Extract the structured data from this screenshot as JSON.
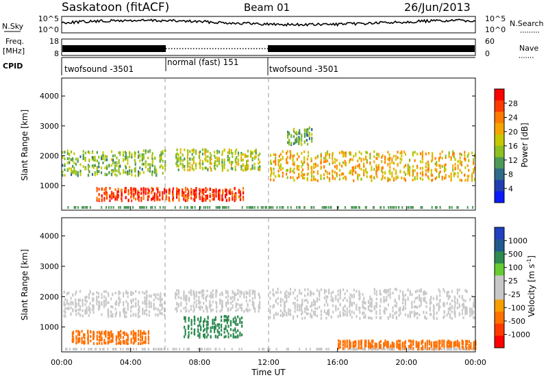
{
  "header": {
    "title": "Saskatoon (fitACF)",
    "beam": "Beam 01",
    "date": "26/Jun/2013"
  },
  "nsky_panel": {
    "left_label": "N.Sky",
    "right_label": "N.Search",
    "left_ticks": [
      "10^5",
      "10^0"
    ],
    "right_ticks": [
      "10^5",
      "10^0"
    ]
  },
  "freq_panel": {
    "left_label_1": "Freq.",
    "left_label_2": "[MHz]",
    "right_label": "Nave",
    "left_ticks": [
      "18",
      "8"
    ],
    "right_ticks": [
      "60",
      "0"
    ]
  },
  "cpid_panel": {
    "label": "CPID",
    "segments": [
      {
        "name": "twofsound -3501",
        "start_hour": 0,
        "end_hour": 6
      },
      {
        "name": "normal (fast) 151",
        "start_hour": 6,
        "end_hour": 12
      },
      {
        "name": "twofsound -3501",
        "start_hour": 12,
        "end_hour": 24
      }
    ]
  },
  "power_colorbar": {
    "label": "Power [dB]",
    "ticks": [
      "28",
      "24",
      "20",
      "16",
      "12",
      "8",
      "4"
    ],
    "colors": [
      "#ff0000",
      "#ff3a00",
      "#ff7a00",
      "#f5a400",
      "#c8c800",
      "#8dc020",
      "#4d9a57",
      "#306a8a",
      "#1f3fb0",
      "#0a1aff"
    ]
  },
  "velocity_colorbar": {
    "label": "Velocity [m s",
    "label_superscript": "-1",
    "label_close": "]",
    "ticks": [
      "1000",
      "500",
      "100",
      "25",
      "-25",
      "-100",
      "-500",
      "-1000"
    ],
    "colors": [
      "#2040c0",
      "#205a8f",
      "#2d8a50",
      "#66cc33",
      "#c8c8c8",
      "#c8c8c8",
      "#f5a000",
      "#ff7000",
      "#ff3a00",
      "#ff0000"
    ]
  },
  "x_axis": {
    "title": "Time UT",
    "ticks": [
      "00:00",
      "04:00",
      "08:00",
      "12:00",
      "16:00",
      "20:00",
      "00:00"
    ]
  },
  "chart_data": [
    {
      "type": "heatmap",
      "name_on_chart": "Power [dB]",
      "ylabel": "Slant Range [km]",
      "xlabel": "Time UT",
      "xlim_hours": [
        0,
        24
      ],
      "ylim_km": [
        180,
        4600
      ],
      "y_ticks": [
        1000,
        2000,
        3000,
        4000
      ],
      "clim_db": [
        0,
        32
      ],
      "echo_regions": [
        {
          "t_start": 0.0,
          "t_end": 6.0,
          "range_center_km": 1800,
          "range_width_km": 600,
          "power_db": 14
        },
        {
          "t_start": 2.0,
          "t_end": 10.5,
          "range_center_km": 750,
          "range_width_km": 300,
          "power_db": 28
        },
        {
          "t_start": 6.5,
          "t_end": 11.5,
          "range_center_km": 1900,
          "range_width_km": 500,
          "power_db": 16
        },
        {
          "t_start": 12.0,
          "t_end": 24.0,
          "range_center_km": 1700,
          "range_width_km": 700,
          "power_db": 20
        },
        {
          "t_start": 13.0,
          "t_end": 14.5,
          "range_center_km": 2700,
          "range_width_km": 400,
          "power_db": 12
        }
      ]
    },
    {
      "type": "heatmap",
      "name_on_chart": "Velocity [m s-1]",
      "ylabel": "Slant Range [km]",
      "xlabel": "Time UT",
      "xlim_hours": [
        0,
        24
      ],
      "ylim_km": [
        180,
        4600
      ],
      "y_ticks": [
        1000,
        2000,
        3000,
        4000
      ],
      "clim_ms": [
        -1000,
        1000
      ],
      "echo_regions": [
        {
          "t_start": 0.0,
          "t_end": 6.0,
          "range_center_km": 1800,
          "range_width_km": 600,
          "velocity_ms": 0
        },
        {
          "t_start": 0.5,
          "t_end": 5.0,
          "range_center_km": 700,
          "range_width_km": 300,
          "velocity_ms": -300
        },
        {
          "t_start": 7.0,
          "t_end": 10.5,
          "range_center_km": 1050,
          "range_width_km": 500,
          "velocity_ms": 120
        },
        {
          "t_start": 6.5,
          "t_end": 11.5,
          "range_center_km": 1900,
          "range_width_km": 500,
          "velocity_ms": 0
        },
        {
          "t_start": 12.0,
          "t_end": 24.0,
          "range_center_km": 1800,
          "range_width_km": 700,
          "velocity_ms": 0
        },
        {
          "t_start": 16.0,
          "t_end": 24.0,
          "range_center_km": 450,
          "range_width_km": 200,
          "velocity_ms": -200
        }
      ]
    }
  ]
}
